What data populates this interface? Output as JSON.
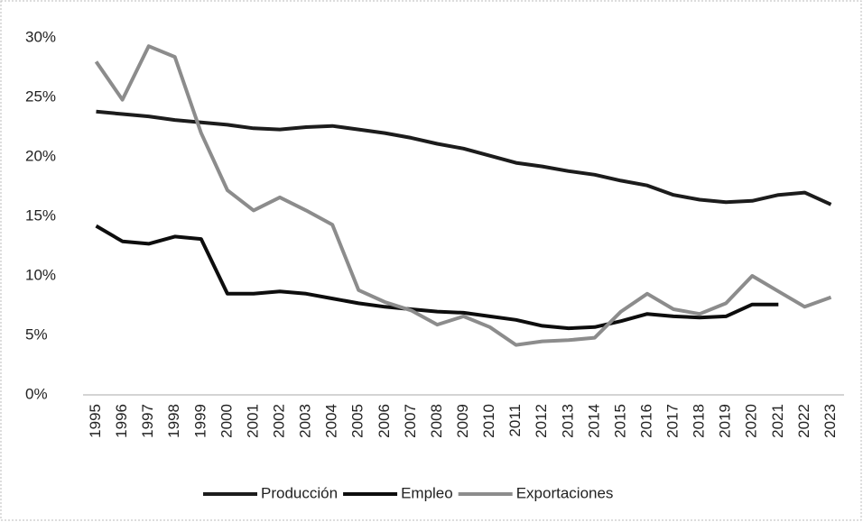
{
  "chart_data": {
    "type": "line",
    "categories": [
      "1995",
      "1996",
      "1997",
      "1998",
      "1999",
      "2000",
      "2001",
      "2002",
      "2003",
      "2004",
      "2005",
      "2006",
      "2007",
      "2008",
      "2009",
      "2010",
      "2011",
      "2012",
      "2013",
      "2014",
      "2015",
      "2016",
      "2017",
      "2018",
      "2019",
      "2020",
      "2021",
      "2022",
      "2023"
    ],
    "series": [
      {
        "name": "Producción",
        "color": "#1c1c1c",
        "values": [
          23.8,
          23.6,
          23.4,
          23.1,
          22.9,
          22.7,
          22.4,
          22.3,
          22.5,
          22.6,
          22.3,
          22.0,
          21.6,
          21.1,
          20.7,
          20.1,
          19.5,
          19.2,
          18.8,
          18.5,
          18.0,
          17.6,
          16.8,
          16.4,
          16.2,
          16.3,
          16.8,
          17.0,
          16.0
        ]
      },
      {
        "name": "Empleo",
        "color": "#0d0d0d",
        "values": [
          14.2,
          12.9,
          12.7,
          13.3,
          13.1,
          8.5,
          8.5,
          8.7,
          8.5,
          8.1,
          7.7,
          7.4,
          7.2,
          7.0,
          6.9,
          6.6,
          6.3,
          5.8,
          5.6,
          5.7,
          6.2,
          6.8,
          6.6,
          6.5,
          6.6,
          7.6,
          7.6,
          null,
          null
        ]
      },
      {
        "name": "Exportaciones",
        "color": "#8c8c8c",
        "values": [
          28.0,
          24.8,
          29.3,
          28.4,
          22.0,
          17.2,
          15.5,
          16.6,
          15.5,
          14.3,
          8.8,
          7.8,
          7.1,
          5.9,
          6.6,
          5.7,
          4.2,
          4.5,
          4.6,
          4.8,
          7.0,
          8.5,
          7.2,
          6.8,
          7.7,
          10.0,
          8.7,
          7.4,
          8.2
        ]
      }
    ],
    "ylim": [
      0,
      30
    ],
    "yticks": [
      {
        "value": 0,
        "label": "0%"
      },
      {
        "value": 5,
        "label": "5%"
      },
      {
        "value": 10,
        "label": "10%"
      },
      {
        "value": 15,
        "label": "15%"
      },
      {
        "value": 20,
        "label": "20%"
      },
      {
        "value": 25,
        "label": "25%"
      },
      {
        "value": 30,
        "label": "30%"
      }
    ],
    "grid": false,
    "legend": "bottom"
  }
}
